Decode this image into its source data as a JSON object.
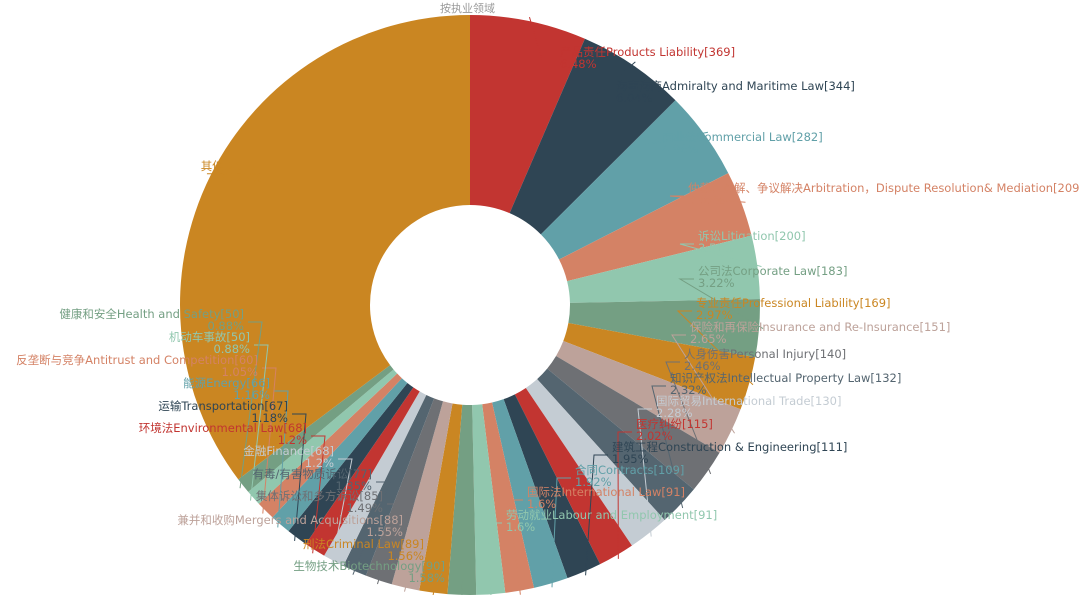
{
  "chart_data": {
    "type": "pie",
    "subtype": "donut",
    "title": "按执业领域",
    "legend": "none",
    "slices": [
      {
        "name": "产品责任Products Liability",
        "value": 369,
        "percent": "6.48%",
        "color": "#c23531"
      },
      {
        "name": "海事海商Admiralty and Maritime Law",
        "value": 344,
        "percent": "6.04%",
        "color": "#2f4554"
      },
      {
        "name": "商业法Commercial Law",
        "value": 282,
        "percent": "4.96%",
        "color": "#61a0a8"
      },
      {
        "name": "仲裁、调解、争议解决Arbitration，Dispute Resolution& Mediation",
        "value": 209,
        "percent": "3.67%",
        "color": "#d48265"
      },
      {
        "name": "诉讼Litigation",
        "value": 200,
        "percent": "3.51%",
        "color": "#91c7ae"
      },
      {
        "name": "公司法Corporate Law",
        "value": 183,
        "percent": "3.22%",
        "color": "#749f83"
      },
      {
        "name": "专业责任Professional Liability",
        "value": 169,
        "percent": "2.97%",
        "color": "#ca8622"
      },
      {
        "name": "保险和再保险Insurance and Re-Insurance",
        "value": 151,
        "percent": "2.65%",
        "color": "#bda29a"
      },
      {
        "name": "人身伤害Personal Injury",
        "value": 140,
        "percent": "2.46%",
        "color": "#6e7074"
      },
      {
        "name": "知识产权法Intellectual Property Law",
        "value": 132,
        "percent": "2.32%",
        "color": "#546570"
      },
      {
        "name": "国际贸易International Trade",
        "value": 130,
        "percent": "2.28%",
        "color": "#c4ccd3"
      },
      {
        "name": "医疗纠纷",
        "value": 115,
        "percent": "2.02%",
        "color": "#c23531"
      },
      {
        "name": "建筑工程Construction & Engineering",
        "value": 111,
        "percent": "1.95%",
        "color": "#2f4554"
      },
      {
        "name": "合同Contracts",
        "value": 109,
        "percent": "1.92%",
        "color": "#61a0a8"
      },
      {
        "name": "国际法International Law",
        "value": 91,
        "percent": "1.6%",
        "color": "#d48265"
      },
      {
        "name": "劳动就业Labour and Employment",
        "value": 91,
        "percent": "1.6%",
        "color": "#91c7ae"
      },
      {
        "name": "生物技术Biotechnology",
        "value": 90,
        "percent": "1.58%",
        "color": "#749f83"
      },
      {
        "name": "刑法Criminal Law",
        "value": 89,
        "percent": "1.56%",
        "color": "#ca8622"
      },
      {
        "name": "兼并和收购Mergers and Acquisitions",
        "value": 88,
        "percent": "1.55%",
        "color": "#bda29a"
      },
      {
        "name": "集体诉讼和多方诉讼",
        "value": 85,
        "percent": "1.49%",
        "color": "#6e7074"
      },
      {
        "name": "有毒/有害物质诉讼",
        "value": 77,
        "percent": "1.35%",
        "color": "#546570"
      },
      {
        "name": "金融Finance",
        "value": 68,
        "percent": "1.2%",
        "color": "#c4ccd3"
      },
      {
        "name": "环境法Environmental Law",
        "value": 68,
        "percent": "1.2%",
        "color": "#c23531"
      },
      {
        "name": "运输Transportation",
        "value": 67,
        "percent": "1.18%",
        "color": "#2f4554"
      },
      {
        "name": "能源Energy",
        "value": 66,
        "percent": "1.16%",
        "color": "#61a0a8"
      },
      {
        "name": "反垄断与竞争Antitrust and Competition",
        "value": 60,
        "percent": "1.05%",
        "color": "#d48265"
      },
      {
        "name": "机动车事故",
        "value": 50,
        "percent": "0.88%",
        "color": "#91c7ae"
      },
      {
        "name": "健康和安全Health and Safety",
        "value": 50,
        "percent": "0.88%",
        "color": "#749f83"
      },
      {
        "name": "其他",
        "value": 2007,
        "percent": "35.27%",
        "color": "#ca8622"
      }
    ]
  }
}
